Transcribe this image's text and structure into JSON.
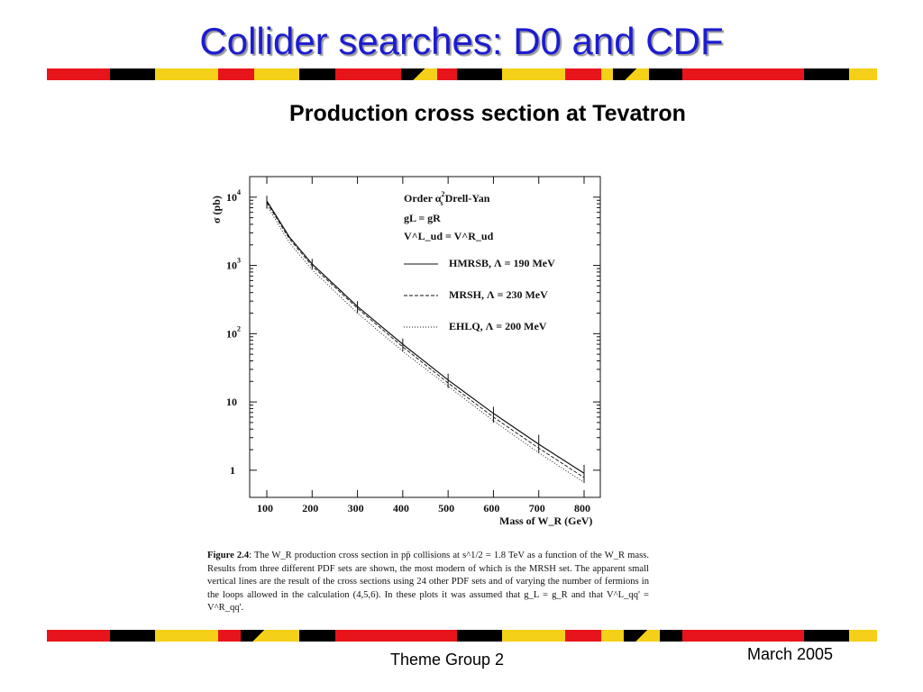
{
  "slide": {
    "title": "Collider searches: D0 and CDF",
    "subtitle": "Production cross section at Tevatron",
    "footer": "Theme Group 2",
    "date": "March 2005"
  },
  "colors": {
    "title": "#1c1cd0",
    "band_red": "#e8141b",
    "band_yellow": "#f4d018",
    "band_black": "#000000"
  },
  "caption": {
    "label": "Figure 2.4",
    "text": ": The W_R production cross section in pp̄ collisions at s^1/2 = 1.8 TeV as a function of the W_R mass. Results from three different PDF sets are shown, the most modern of which is the MRSH set. The apparent small vertical lines are the result of the cross sections using 24 other PDF sets and of varying the number of fermions in the loops allowed in the calculation (4,5,6). In these plots it was assumed that g_L = g_R and that V^L_qq' = V^R_qq'."
  },
  "chart_data": {
    "type": "line",
    "ylabel": "σ (pb)",
    "xlabel": "Mass of W_R (GeV)",
    "xlim": [
      100,
      800
    ],
    "ylim": [
      0.4,
      20000
    ],
    "yscale": "log",
    "x_ticks": [
      "100",
      "200",
      "300",
      "400",
      "500",
      "600",
      "700",
      "800"
    ],
    "y_ticks": [
      {
        "value": 10000,
        "label": "10^4"
      },
      {
        "value": 1000,
        "label": "10^3"
      },
      {
        "value": 100,
        "label": "10^2"
      },
      {
        "value": 10,
        "label": "10"
      },
      {
        "value": 1,
        "label": "1"
      }
    ],
    "legend_header": [
      "Order αs² Drell-Yan",
      "gL = gR",
      "V^L_ud = V^R_ud"
    ],
    "legend_position": "top-right",
    "x": [
      100,
      150,
      200,
      300,
      400,
      500,
      600,
      700,
      800
    ],
    "series": [
      {
        "name": "HMRSB, Λ = 190 MeV",
        "style": "solid",
        "values": [
          8800,
          2600,
          1050,
          250,
          70,
          21,
          6.8,
          2.4,
          0.9
        ]
      },
      {
        "name": "MRSH,  Λ = 230 MeV",
        "style": "dashed",
        "values": [
          8300,
          2450,
          980,
          235,
          64,
          19,
          6.0,
          2.1,
          0.78
        ]
      },
      {
        "name": "EHLQ,  Λ = 200 MeV",
        "style": "dotted",
        "values": [
          7600,
          2150,
          860,
          200,
          55,
          17,
          5.3,
          1.8,
          0.66
        ]
      }
    ],
    "error_marks": [
      {
        "x": 100,
        "low": 6800,
        "high": 10500
      },
      {
        "x": 200,
        "low": 880,
        "high": 1250
      },
      {
        "x": 300,
        "low": 200,
        "high": 300
      },
      {
        "x": 400,
        "low": 55,
        "high": 85
      },
      {
        "x": 500,
        "low": 16,
        "high": 26
      },
      {
        "x": 600,
        "low": 5,
        "high": 8.5
      },
      {
        "x": 700,
        "low": 1.8,
        "high": 3.3
      },
      {
        "x": 800,
        "low": 0.65,
        "high": 1.2
      }
    ]
  }
}
